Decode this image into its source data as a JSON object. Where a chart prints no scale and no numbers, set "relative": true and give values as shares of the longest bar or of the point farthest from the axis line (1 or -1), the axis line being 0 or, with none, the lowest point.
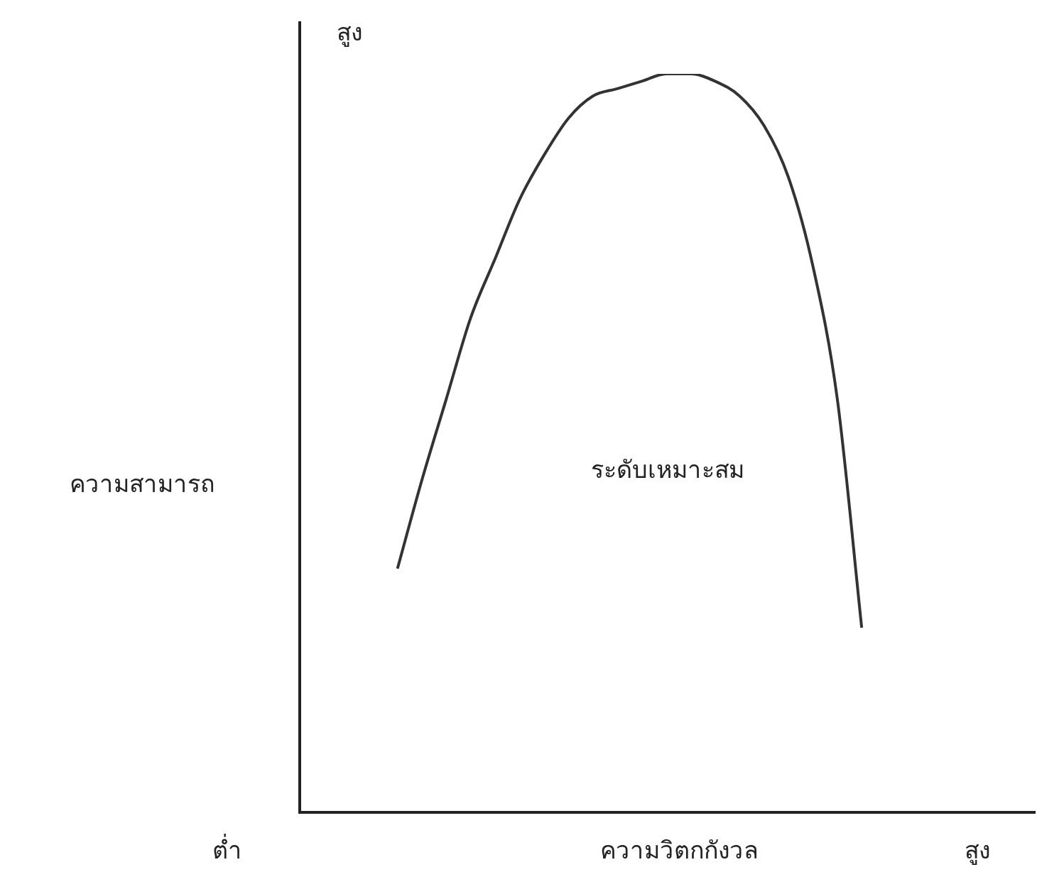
{
  "chart_data": {
    "type": "line",
    "relative": true,
    "xlabel": "ความวิตกกังวล",
    "ylabel": "ความสามารถ",
    "categories": [
      null,
      null,
      null,
      null,
      null,
      null,
      null,
      null,
      null,
      null,
      null,
      null,
      null,
      null,
      null,
      null,
      null,
      null,
      null,
      null,
      null,
      null,
      null,
      null,
      null,
      null,
      null,
      null,
      null,
      null,
      null
    ],
    "series": [
      {
        "color": "#333333",
        "values": [
          null,
          null,
          null,
          null,
          0.33,
          0.45,
          0.56,
          0.67,
          0.75,
          0.83,
          0.89,
          0.94,
          0.97,
          0.98,
          0.99,
          1,
          1,
          0.99,
          0.97,
          0.93,
          0.86,
          0.74,
          0.56,
          0.25,
          null,
          null,
          null,
          null,
          null,
          null,
          null
        ]
      }
    ],
    "annotations": [
      "สูง",
      "ต่ำ",
      "สูง",
      "ระดับเหมาะสม"
    ],
    "marker": "none",
    "legend": false
  }
}
